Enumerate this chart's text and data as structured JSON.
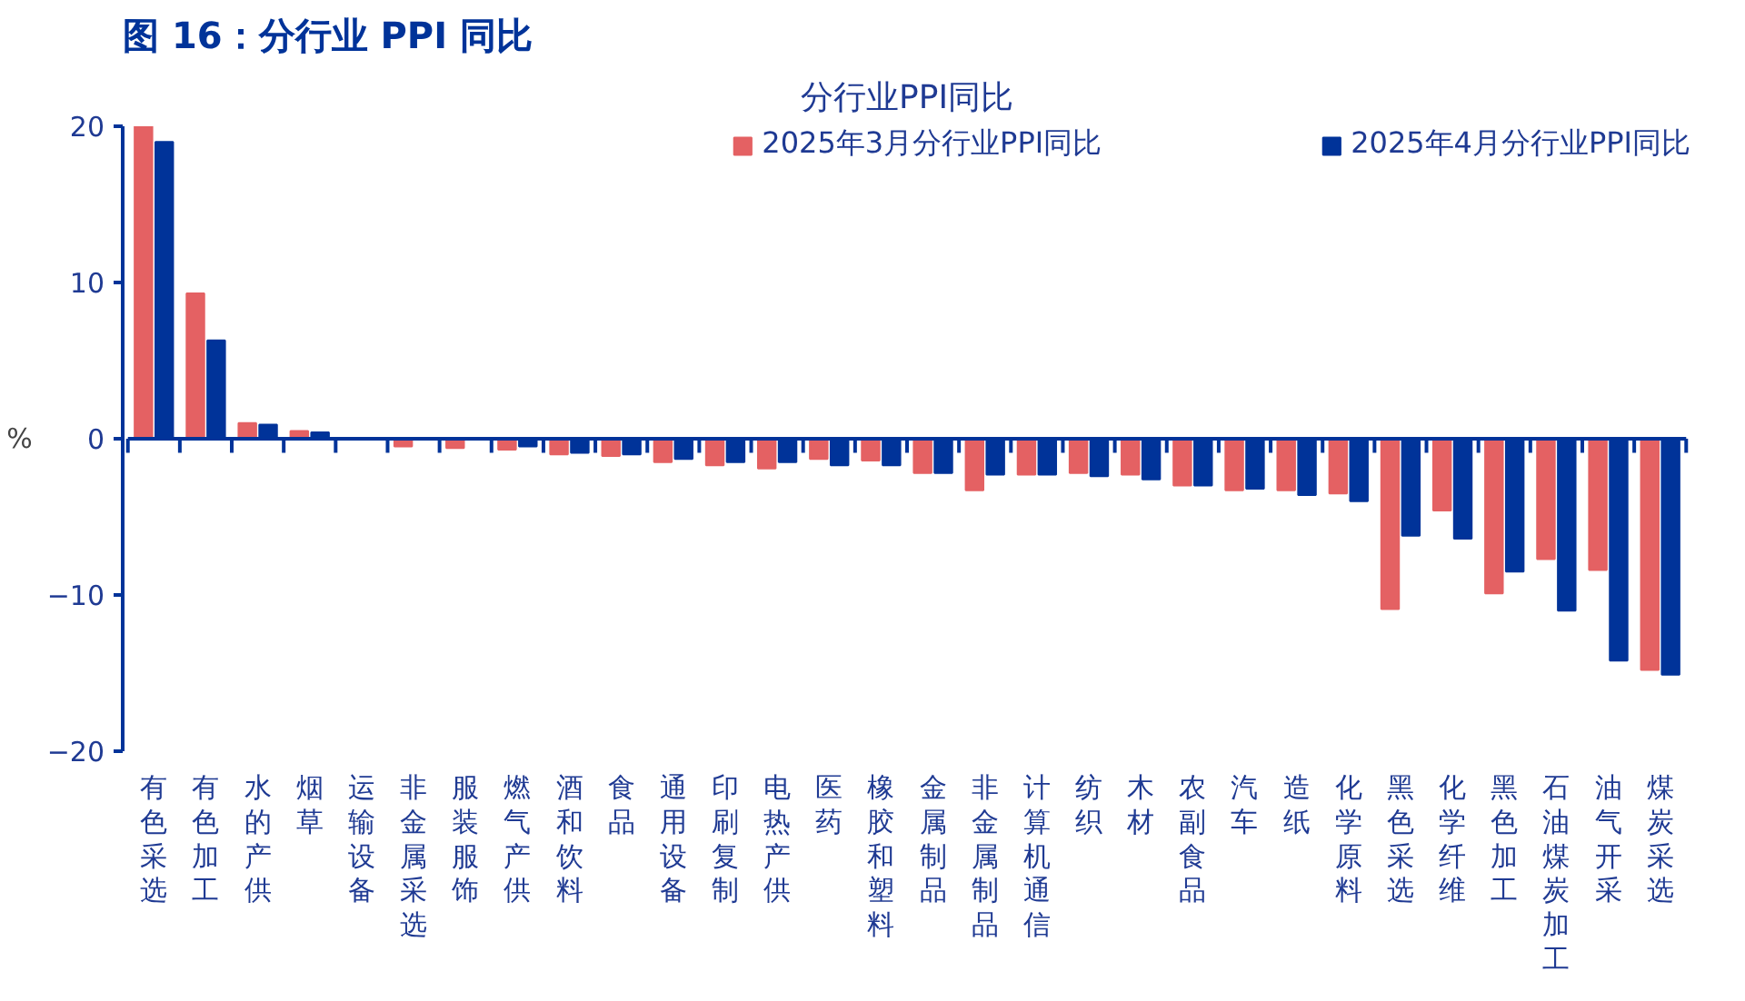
{
  "chart_data": {
    "type": "bar",
    "title": "图 16：分行业 PPI 同比",
    "subtitle": "分行业PPI同比",
    "ylabel": "%",
    "categories": [
      "有色采选",
      "有色加工",
      "水的产供",
      "烟草",
      "运输设备",
      "非金属采选",
      "服装服饰",
      "燃气产供",
      "酒和饮料",
      "食品",
      "通用设备",
      "印刷复制",
      "电热产供",
      "医药",
      "橡胶和塑料",
      "金属制品",
      "非金属制品",
      "计算机通信",
      "纺织",
      "木材",
      "农副食品",
      "汽车",
      "造纸",
      "化学原料",
      "黑色采选",
      "化学纤维",
      "黑色加工",
      "石油煤炭加工",
      "油气开采",
      "煤炭采选"
    ],
    "series": [
      {
        "name": "2025年3月分行业PPI同比",
        "color": "#e46163",
        "values": [
          20,
          9.3,
          1.0,
          0.5,
          0,
          -0.5,
          -0.6,
          -0.7,
          -1.0,
          -1.1,
          -1.5,
          -1.7,
          -1.9,
          -1.3,
          -1.4,
          -2.2,
          -3.3,
          -2.3,
          -2.2,
          -2.3,
          -3.0,
          -3.3,
          -3.3,
          -3.5,
          -10.9,
          -4.6,
          -9.9,
          -7.7,
          -8.4,
          -14.8
        ]
      },
      {
        "name": "2025年4月分行业PPI同比",
        "color": "#003399",
        "values": [
          19,
          6.3,
          0.9,
          0.4,
          0,
          null,
          null,
          -0.5,
          -0.9,
          -1.0,
          -1.3,
          -1.5,
          -1.5,
          -1.7,
          -1.7,
          -2.2,
          -2.3,
          -2.3,
          -2.4,
          -2.6,
          -3.0,
          -3.2,
          -3.6,
          -4.0,
          -6.2,
          -6.4,
          -8.5,
          -11.0,
          -14.2,
          -15.1
        ]
      }
    ],
    "ylim": [
      -20,
      20
    ],
    "yticks": [
      -20,
      -10,
      0,
      10,
      20
    ],
    "grid": false,
    "ref_lines": [
      {
        "axis": "y",
        "value": 0,
        "color": "#003399"
      }
    ],
    "legend": "top"
  }
}
